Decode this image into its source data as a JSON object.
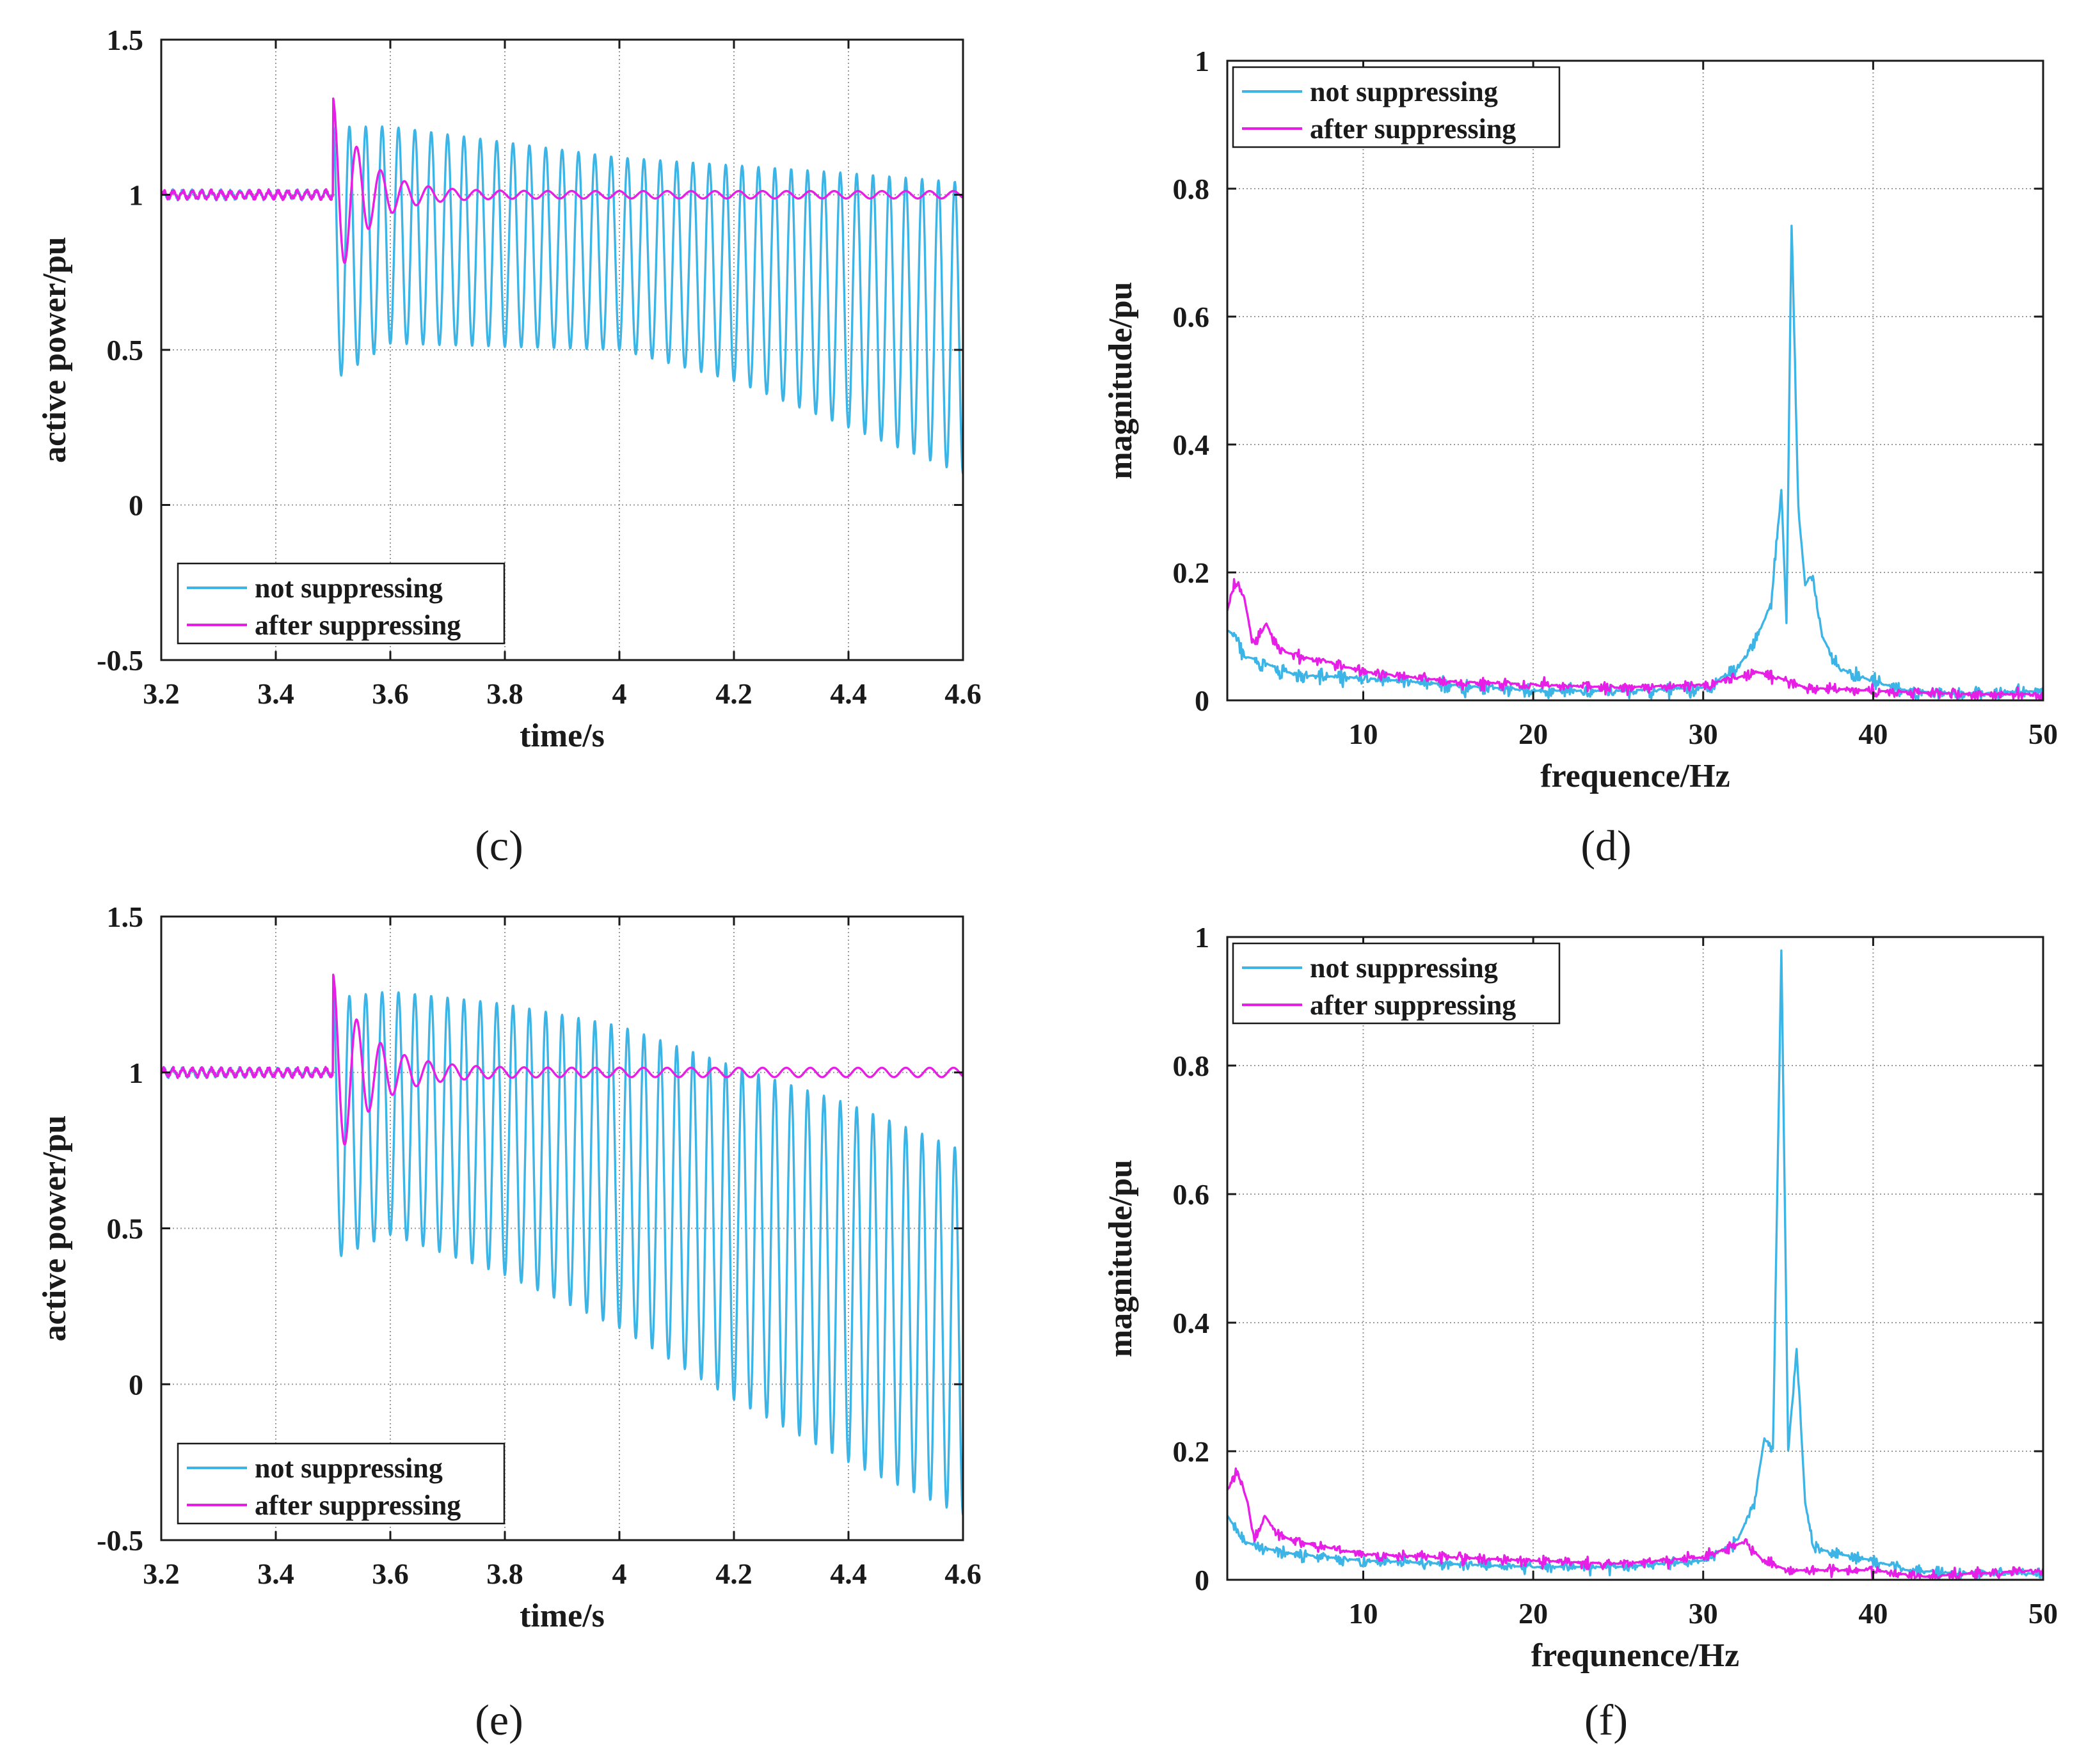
{
  "figure": {
    "panels": [
      "c",
      "d",
      "e",
      "f"
    ]
  },
  "chart_data": [
    {
      "id": "c",
      "caption": "(c)",
      "type": "line",
      "title": "",
      "xlabel": "time/s",
      "ylabel": "active power/pu",
      "xlim": [
        3.2,
        4.6
      ],
      "ylim": [
        -0.5,
        1.5
      ],
      "xticks": [
        "3.2",
        "3.4",
        "3.6",
        "3.8",
        "4",
        "4.2",
        "4.4",
        "4.6"
      ],
      "yticks": [
        "-0.5",
        "0",
        "0.5",
        "1",
        "1.5"
      ],
      "legend": {
        "position": "lower-left",
        "entries": [
          "not suppressing",
          "after suppressing"
        ]
      },
      "series": [
        {
          "name": "not suppressing",
          "color": "#3CB4E6",
          "kind": "time",
          "pre_event_level": 1.0,
          "event_time": 3.5,
          "oscillation_hz": 35,
          "upper_envelope": [
            [
              3.5,
              1.22
            ],
            [
              3.6,
              1.22
            ],
            [
              4.0,
              1.12
            ],
            [
              4.4,
              1.07
            ],
            [
              4.6,
              1.04
            ]
          ],
          "lower_envelope": [
            [
              3.5,
              0.4
            ],
            [
              3.6,
              0.52
            ],
            [
              4.0,
              0.5
            ],
            [
              4.2,
              0.4
            ],
            [
              4.6,
              0.1
            ]
          ]
        },
        {
          "name": "after suppressing",
          "color": "#E61EE6",
          "kind": "time",
          "pre_event_level": 1.0,
          "event_time": 3.5,
          "oscillation_hz": 24,
          "initial_amplitude": 0.3,
          "decay_per_s": 18,
          "residual_amplitude": 0.012
        }
      ]
    },
    {
      "id": "d",
      "caption": "(d)",
      "type": "line",
      "title": "",
      "xlabel": "frequence/Hz",
      "ylabel": "magnitude/pu",
      "xlim": [
        2,
        50
      ],
      "ylim": [
        0,
        1
      ],
      "xticks": [
        "10",
        "20",
        "30",
        "40",
        "50"
      ],
      "yticks": [
        "0",
        "0.2",
        "0.4",
        "0.6",
        "0.8",
        "1"
      ],
      "legend": {
        "position": "top-left",
        "entries": [
          "not suppressing",
          "after suppressing"
        ]
      },
      "series": [
        {
          "name": "not suppressing",
          "color": "#3CB4E6",
          "kind": "spectrum",
          "points": [
            [
              2,
              0.11
            ],
            [
              2.5,
              0.1
            ],
            [
              3,
              0.07
            ],
            [
              4,
              0.06
            ],
            [
              6,
              0.04
            ],
            [
              10,
              0.035
            ],
            [
              15,
              0.025
            ],
            [
              20,
              0.015
            ],
            [
              25,
              0.015
            ],
            [
              30,
              0.02
            ],
            [
              32,
              0.05
            ],
            [
              33,
              0.09
            ],
            [
              34,
              0.15
            ],
            [
              34.6,
              0.33
            ],
            [
              34.9,
              0.12
            ],
            [
              35.2,
              0.75
            ],
            [
              35.6,
              0.3
            ],
            [
              36,
              0.18
            ],
            [
              36.4,
              0.2
            ],
            [
              37,
              0.1
            ],
            [
              38,
              0.05
            ],
            [
              40,
              0.03
            ],
            [
              42,
              0.015
            ],
            [
              45,
              0.01
            ],
            [
              50,
              0.015
            ]
          ],
          "ripple": 0.025
        },
        {
          "name": "after suppressing",
          "color": "#E61EE6",
          "kind": "spectrum",
          "points": [
            [
              2,
              0.14
            ],
            [
              2.5,
              0.19
            ],
            [
              3,
              0.16
            ],
            [
              3.5,
              0.09
            ],
            [
              4.3,
              0.12
            ],
            [
              5,
              0.08
            ],
            [
              6,
              0.07
            ],
            [
              8,
              0.06
            ],
            [
              10,
              0.045
            ],
            [
              15,
              0.03
            ],
            [
              20,
              0.025
            ],
            [
              25,
              0.02
            ],
            [
              30,
              0.025
            ],
            [
              32,
              0.035
            ],
            [
              33,
              0.045
            ],
            [
              34,
              0.04
            ],
            [
              36,
              0.02
            ],
            [
              40,
              0.015
            ],
            [
              45,
              0.01
            ],
            [
              50,
              0.01
            ]
          ],
          "ripple": 0.02
        }
      ]
    },
    {
      "id": "e",
      "caption": "(e)",
      "type": "line",
      "title": "",
      "xlabel": "time/s",
      "ylabel": "active power/pu",
      "xlim": [
        3.2,
        4.6
      ],
      "ylim": [
        -0.5,
        1.5
      ],
      "xticks": [
        "3.2",
        "3.4",
        "3.6",
        "3.8",
        "4",
        "4.2",
        "4.4",
        "4.6"
      ],
      "yticks": [
        "-0.5",
        "0",
        "0.5",
        "1",
        "1.5"
      ],
      "legend": {
        "position": "lower-left",
        "entries": [
          "not suppressing",
          "after suppressing"
        ]
      },
      "series": [
        {
          "name": "not suppressing",
          "color": "#3CB4E6",
          "kind": "time",
          "pre_event_level": 1.0,
          "event_time": 3.5,
          "oscillation_hz": 35,
          "upper_envelope": [
            [
              3.5,
              1.24
            ],
            [
              3.6,
              1.26
            ],
            [
              3.8,
              1.22
            ],
            [
              4.0,
              1.15
            ],
            [
              4.2,
              1.02
            ],
            [
              4.4,
              0.9
            ],
            [
              4.6,
              0.75
            ]
          ],
          "lower_envelope": [
            [
              3.5,
              0.4
            ],
            [
              3.6,
              0.48
            ],
            [
              3.8,
              0.35
            ],
            [
              4.0,
              0.18
            ],
            [
              4.2,
              -0.05
            ],
            [
              4.4,
              -0.25
            ],
            [
              4.6,
              -0.42
            ]
          ]
        },
        {
          "name": "after suppressing",
          "color": "#E61EE6",
          "kind": "time",
          "pre_event_level": 1.0,
          "event_time": 3.5,
          "oscillation_hz": 24,
          "initial_amplitude": 0.3,
          "decay_per_s": 16,
          "residual_amplitude": 0.015
        }
      ]
    },
    {
      "id": "f",
      "caption": "(f)",
      "type": "line",
      "title": "",
      "xlabel": "frequnence/Hz",
      "ylabel": "magnitude/pu",
      "xlim": [
        2,
        50
      ],
      "ylim": [
        0,
        1
      ],
      "xticks": [
        "10",
        "20",
        "30",
        "40",
        "50"
      ],
      "yticks": [
        "0",
        "0.2",
        "0.4",
        "0.6",
        "0.8",
        "1"
      ],
      "legend": {
        "position": "top-left",
        "entries": [
          "not suppressing",
          "after suppressing"
        ]
      },
      "series": [
        {
          "name": "not suppressing",
          "color": "#3CB4E6",
          "kind": "spectrum",
          "points": [
            [
              2,
              0.1
            ],
            [
              2.5,
              0.08
            ],
            [
              3,
              0.06
            ],
            [
              4,
              0.05
            ],
            [
              6,
              0.04
            ],
            [
              10,
              0.03
            ],
            [
              15,
              0.025
            ],
            [
              20,
              0.02
            ],
            [
              25,
              0.02
            ],
            [
              30,
              0.03
            ],
            [
              32,
              0.06
            ],
            [
              33,
              0.12
            ],
            [
              33.6,
              0.22
            ],
            [
              34.1,
              0.2
            ],
            [
              34.6,
              0.98
            ],
            [
              35,
              0.2
            ],
            [
              35.5,
              0.36
            ],
            [
              36,
              0.12
            ],
            [
              36.5,
              0.05
            ],
            [
              38,
              0.04
            ],
            [
              40,
              0.03
            ],
            [
              42,
              0.015
            ],
            [
              45,
              0.01
            ],
            [
              50,
              0.01
            ]
          ],
          "ripple": 0.02
        },
        {
          "name": "after suppressing",
          "color": "#E61EE6",
          "kind": "spectrum",
          "points": [
            [
              2,
              0.14
            ],
            [
              2.6,
              0.17
            ],
            [
              3.2,
              0.12
            ],
            [
              3.6,
              0.06
            ],
            [
              4.2,
              0.1
            ],
            [
              5,
              0.07
            ],
            [
              6,
              0.06
            ],
            [
              8,
              0.05
            ],
            [
              10,
              0.04
            ],
            [
              15,
              0.035
            ],
            [
              20,
              0.03
            ],
            [
              25,
              0.025
            ],
            [
              30,
              0.035
            ],
            [
              31,
              0.045
            ],
            [
              32.5,
              0.06
            ],
            [
              33.5,
              0.03
            ],
            [
              35,
              0.015
            ],
            [
              40,
              0.015
            ],
            [
              43,
              0.005
            ],
            [
              46,
              0.01
            ],
            [
              50,
              0.015
            ]
          ],
          "ripple": 0.018
        }
      ]
    }
  ]
}
